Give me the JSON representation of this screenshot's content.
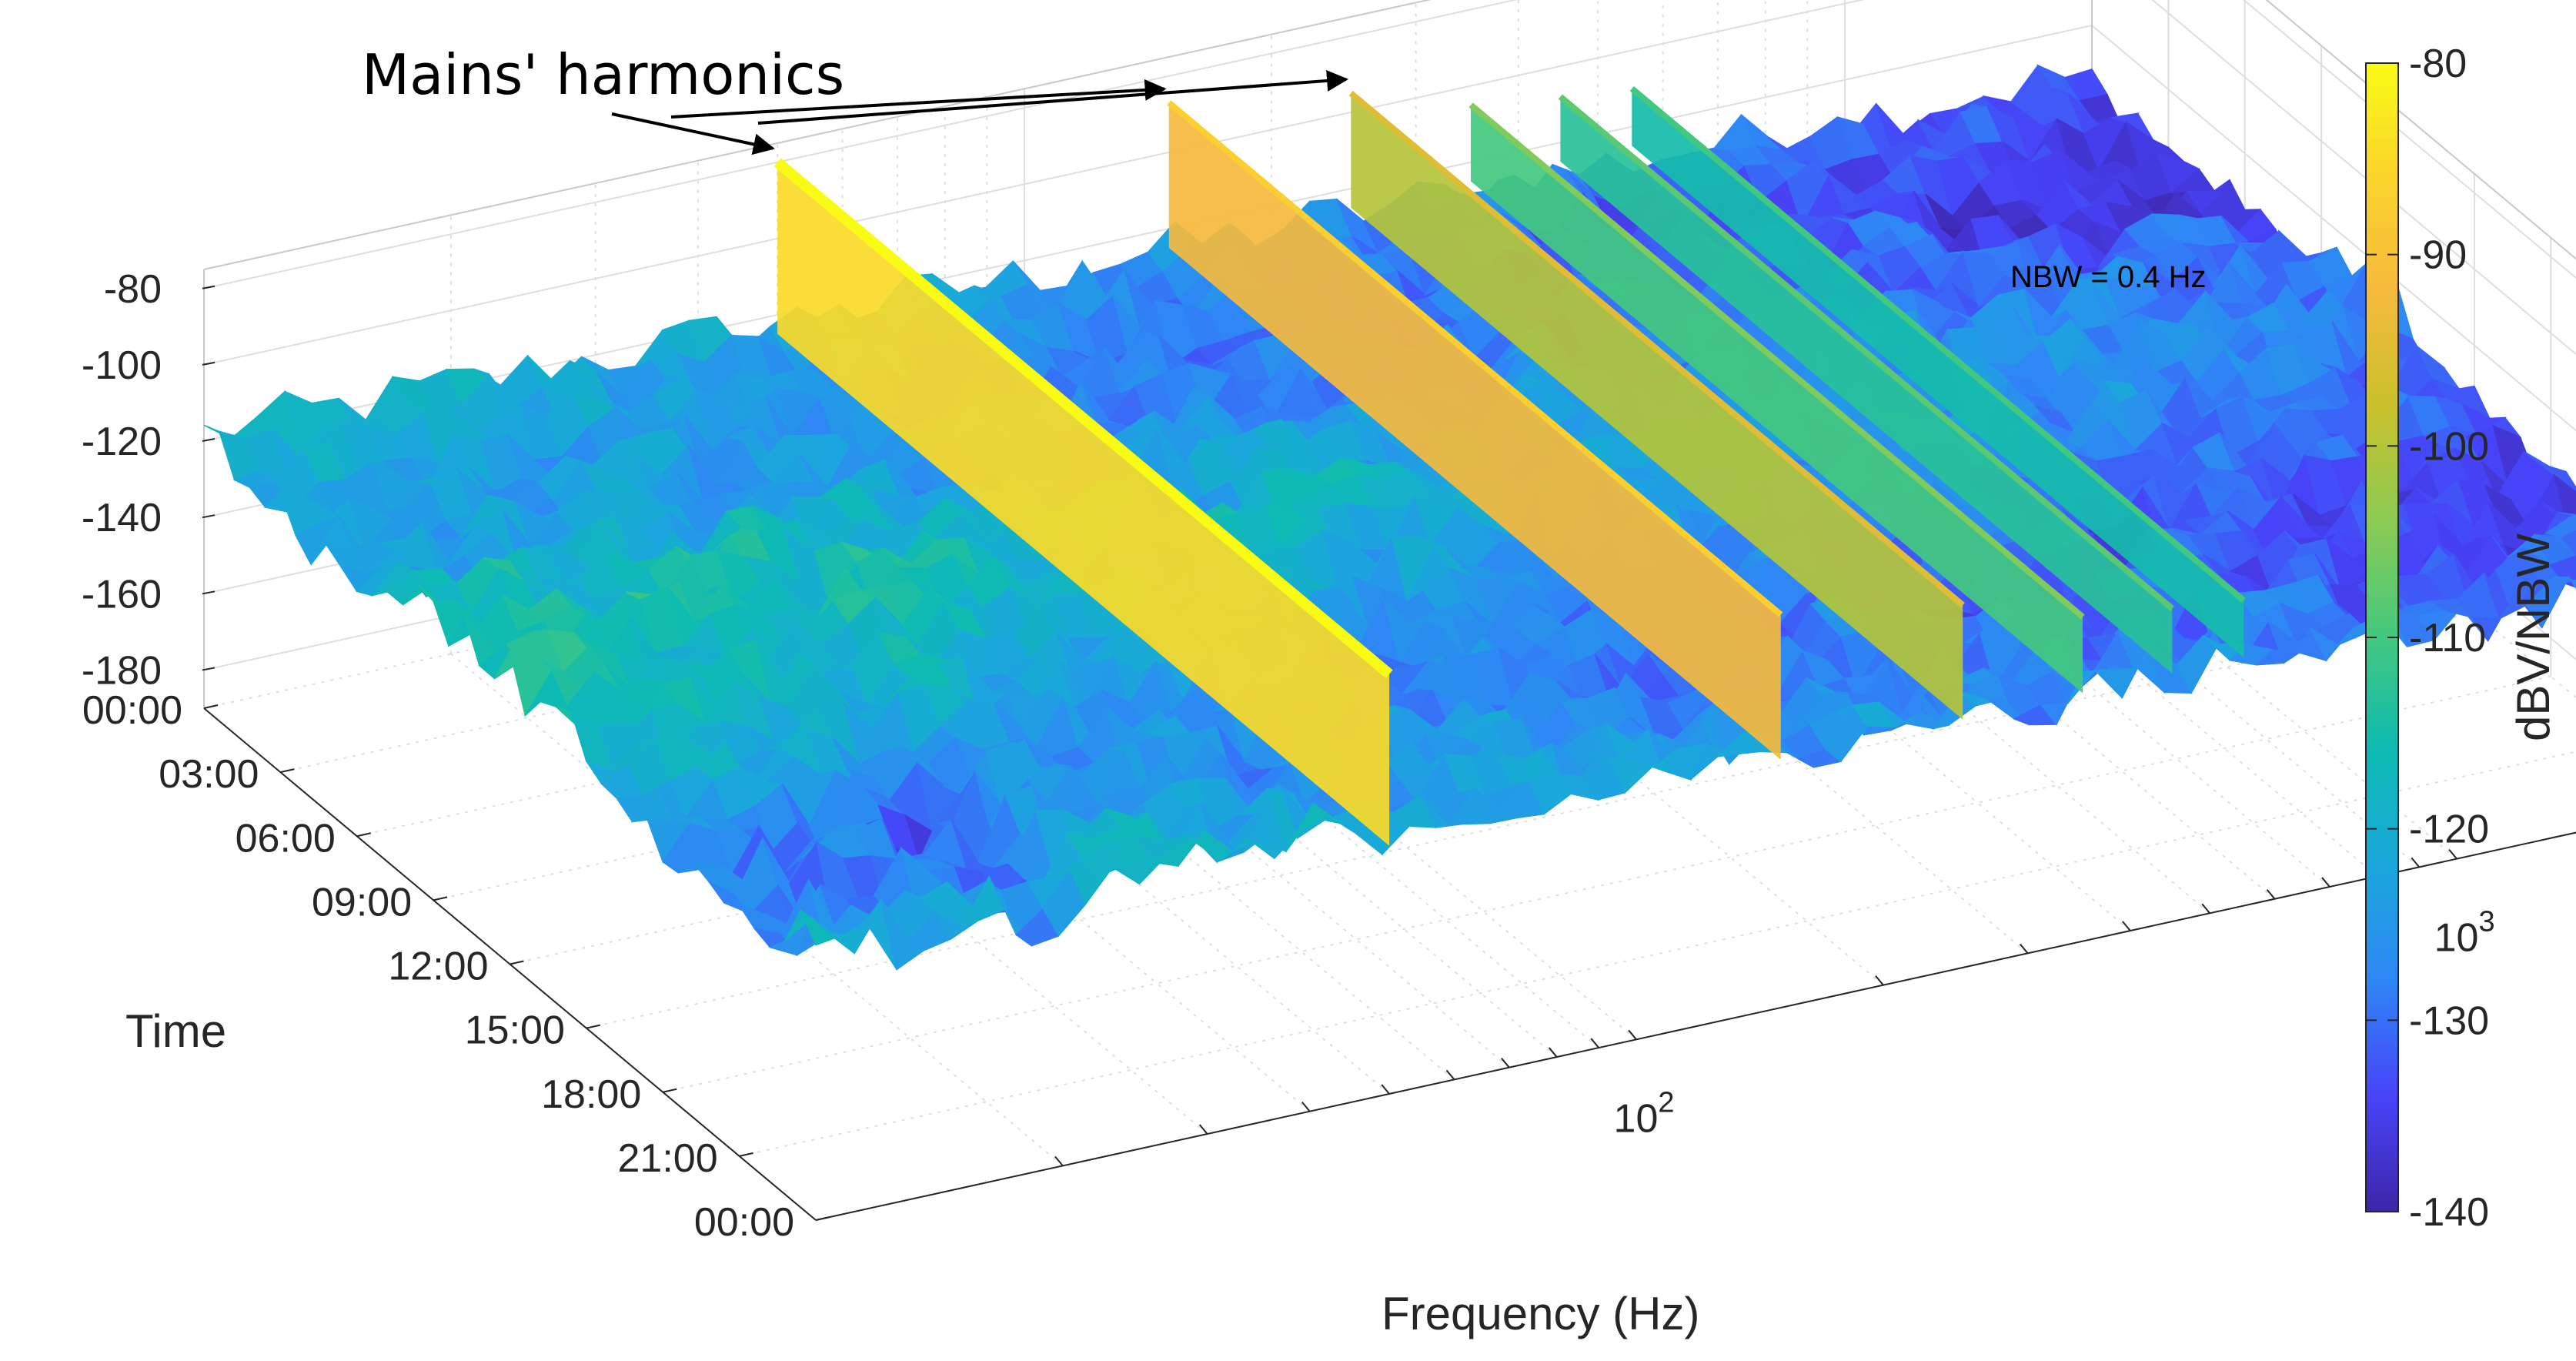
{
  "chart_data": {
    "type": "surface3d",
    "title": "",
    "annotation": "Mains' harmonics",
    "note": "NBW = 0.4 Hz",
    "xlabel": "Frequency (Hz)",
    "ylabel": "Time",
    "zlabel": "",
    "x_scale": "log",
    "x_ticks": [
      {
        "value": 100,
        "base": "10",
        "exp": "2"
      },
      {
        "value": 1000,
        "base": "10",
        "exp": "3"
      }
    ],
    "xlim": [
      10,
      2000
    ],
    "y_ticks": [
      "00:00",
      "03:00",
      "06:00",
      "09:00",
      "12:00",
      "15:00",
      "18:00",
      "21:00",
      "00:00"
    ],
    "z_ticks": [
      "-80",
      "-100",
      "-120",
      "-140",
      "-160",
      "-180"
    ],
    "zlim": [
      -190,
      -75
    ],
    "colorbar": {
      "label": "dBV/NBW",
      "ticks": [
        "-80",
        "-90",
        "-100",
        "-110",
        "-120",
        "-130",
        "-140"
      ],
      "range": [
        -140,
        -80
      ],
      "colormap": [
        "#3e26a8",
        "#4743f8",
        "#2f86f5",
        "#1ba7dc",
        "#0dbab3",
        "#43c87f",
        "#8bcb54",
        "#c8c12c",
        "#f5ba3d",
        "#fbd32c",
        "#f9fb15"
      ]
    },
    "series": [
      {
        "frequency": 50,
        "level_dBV": -80
      },
      {
        "frequency": 150,
        "level_dBV": -87
      },
      {
        "frequency": 250,
        "level_dBV": -95
      },
      {
        "frequency": 350,
        "level_dBV": -105
      },
      {
        "frequency": 450,
        "level_dBV": -108
      },
      {
        "frequency": 550,
        "level_dBV": -110
      }
    ],
    "noise_floor_dBV": {
      "low_frequency": -118,
      "high_frequency": -132
    }
  }
}
